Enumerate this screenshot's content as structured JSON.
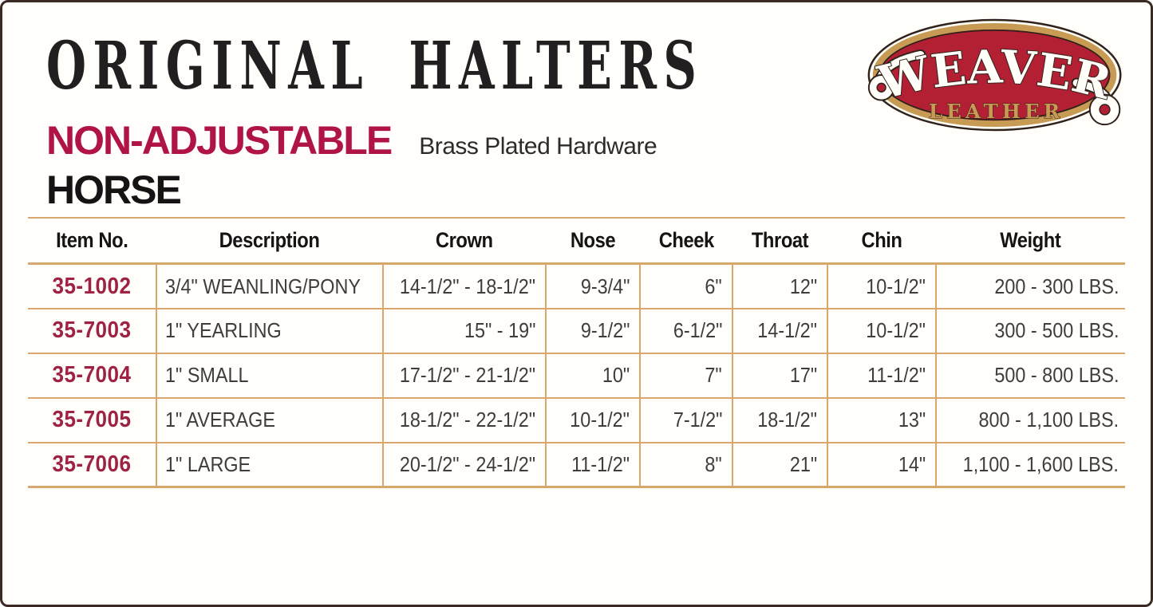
{
  "page": {
    "title": "ORIGINAL HALTERS",
    "subtitle": "NON-ADJUSTABLE",
    "subtitle_note": "Brass Plated Hardware",
    "section": "HORSE"
  },
  "logo": {
    "brand": "WEAVER",
    "sub": "LEATHER"
  },
  "colors": {
    "accent-red": "#B01345",
    "item-red": "#9E2342",
    "rule-tan": "#D8A76C",
    "border-brown": "#3B2A23",
    "logo-red": "#B31F33",
    "logo-gold": "#C89B55",
    "logo-dark": "#30221A",
    "logo-cream": "#FFFEF8",
    "title-black": "#231F20",
    "text-dark": "#3F3C3D"
  },
  "table": {
    "columns": [
      {
        "key": "item",
        "label": "Item No.",
        "align": "center"
      },
      {
        "key": "description",
        "label": "Description",
        "align": "left"
      },
      {
        "key": "crown",
        "label": "Crown",
        "align": "right"
      },
      {
        "key": "nose",
        "label": "Nose",
        "align": "right"
      },
      {
        "key": "cheek",
        "label": "Cheek",
        "align": "right"
      },
      {
        "key": "throat",
        "label": "Throat",
        "align": "right"
      },
      {
        "key": "chin",
        "label": "Chin",
        "align": "right"
      },
      {
        "key": "weight",
        "label": "Weight",
        "align": "right"
      }
    ],
    "rows": [
      {
        "item": "35-1002",
        "description": "3/4\" WEANLING/PONY",
        "crown": "14-1/2\" - 18-1/2\"",
        "nose": "9-3/4\"",
        "cheek": "6\"",
        "throat": "12\"",
        "chin": "10-1/2\"",
        "weight": "200 - 300 LBS."
      },
      {
        "item": "35-7003",
        "description": "1\" YEARLING",
        "crown": "15\" - 19\"",
        "nose": "9-1/2\"",
        "cheek": "6-1/2\"",
        "throat": "14-1/2\"",
        "chin": "10-1/2\"",
        "weight": "300 - 500 LBS."
      },
      {
        "item": "35-7004",
        "description": "1\" SMALL",
        "crown": "17-1/2\" - 21-1/2\"",
        "nose": "10\"",
        "cheek": "7\"",
        "throat": "17\"",
        "chin": "11-1/2\"",
        "weight": "500 - 800 LBS."
      },
      {
        "item": "35-7005",
        "description": "1\" AVERAGE",
        "crown": "18-1/2\" - 22-1/2\"",
        "nose": "10-1/2\"",
        "cheek": "7-1/2\"",
        "throat": "18-1/2\"",
        "chin": "13\"",
        "weight": "800 - 1,100 LBS."
      },
      {
        "item": "35-7006",
        "description": "1\" LARGE",
        "crown": "20-1/2\" - 24-1/2\"",
        "nose": "11-1/2\"",
        "cheek": "8\"",
        "throat": "21\"",
        "chin": "14\"",
        "weight": "1,100 - 1,600 LBS."
      }
    ]
  }
}
